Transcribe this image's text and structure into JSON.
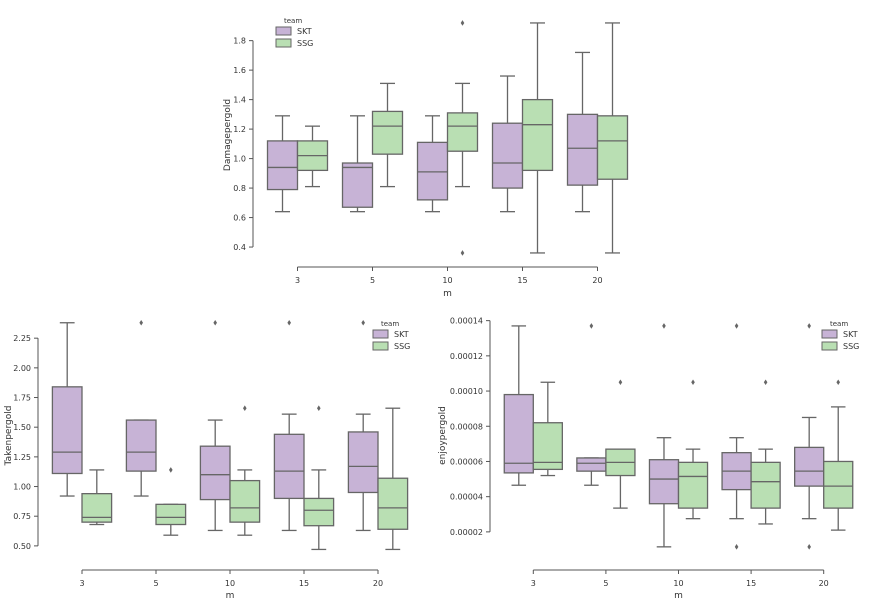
{
  "colors": {
    "SKT": "#c7b3d6",
    "SSG": "#b9dfb3",
    "edge": "#666666",
    "axis": "#555555"
  },
  "chart_data": [
    {
      "type": "box",
      "xlabel": "m",
      "ylabel": "Damagepergold",
      "categories": [
        "3",
        "5",
        "10",
        "15",
        "20"
      ],
      "yticks": [
        "0.4",
        "0.6",
        "0.8",
        "1.0",
        "1.2",
        "1.4",
        "1.6",
        "1.8"
      ],
      "ylim": [
        0.38,
        1.94
      ],
      "legend": {
        "title": "team",
        "entries": [
          "SKT",
          "SSG"
        ],
        "position": "top-left"
      },
      "series": [
        {
          "name": "SKT",
          "boxes": [
            {
              "whislo": 0.64,
              "q1": 0.79,
              "med": 0.94,
              "q3": 1.12,
              "whishi": 1.29,
              "fliers": []
            },
            {
              "whislo": 0.64,
              "q1": 0.67,
              "med": 0.94,
              "q3": 0.97,
              "whishi": 1.29,
              "fliers": []
            },
            {
              "whislo": 0.64,
              "q1": 0.72,
              "med": 0.91,
              "q3": 1.11,
              "whishi": 1.29,
              "fliers": []
            },
            {
              "whislo": 0.64,
              "q1": 0.8,
              "med": 0.97,
              "q3": 1.24,
              "whishi": 1.56,
              "fliers": []
            },
            {
              "whislo": 0.64,
              "q1": 0.82,
              "med": 1.07,
              "q3": 1.3,
              "whishi": 1.72,
              "fliers": []
            }
          ]
        },
        {
          "name": "SSG",
          "boxes": [
            {
              "whislo": 0.81,
              "q1": 0.92,
              "med": 1.02,
              "q3": 1.12,
              "whishi": 1.22,
              "fliers": []
            },
            {
              "whislo": 0.81,
              "q1": 1.03,
              "med": 1.22,
              "q3": 1.32,
              "whishi": 1.51,
              "fliers": []
            },
            {
              "whislo": 0.81,
              "q1": 1.05,
              "med": 1.22,
              "q3": 1.31,
              "whishi": 1.51,
              "fliers": [
                0.36,
                1.92
              ]
            },
            {
              "whislo": 0.36,
              "q1": 0.92,
              "med": 1.23,
              "q3": 1.4,
              "whishi": 1.92,
              "fliers": []
            },
            {
              "whislo": 0.36,
              "q1": 0.86,
              "med": 1.12,
              "q3": 1.29,
              "whishi": 1.92,
              "fliers": []
            }
          ]
        }
      ]
    },
    {
      "type": "box",
      "xlabel": "m",
      "ylabel": "Takenpergold",
      "categories": [
        "3",
        "5",
        "10",
        "15",
        "20"
      ],
      "yticks": [
        "0.50",
        "0.75",
        "1.00",
        "1.25",
        "1.50",
        "1.75",
        "2.00",
        "2.25"
      ],
      "ylim": [
        0.44,
        2.42
      ],
      "legend": {
        "title": "team",
        "entries": [
          "SKT",
          "SSG"
        ],
        "position": "top-right"
      },
      "series": [
        {
          "name": "SKT",
          "boxes": [
            {
              "whislo": 0.92,
              "q1": 1.11,
              "med": 1.29,
              "q3": 1.84,
              "whishi": 2.38,
              "fliers": []
            },
            {
              "whislo": 0.92,
              "q1": 1.13,
              "med": 1.29,
              "q3": 1.56,
              "whishi": 1.56,
              "fliers": [
                2.38
              ]
            },
            {
              "whislo": 0.63,
              "q1": 0.89,
              "med": 1.1,
              "q3": 1.34,
              "whishi": 1.56,
              "fliers": [
                2.38
              ]
            },
            {
              "whislo": 0.63,
              "q1": 0.9,
              "med": 1.13,
              "q3": 1.44,
              "whishi": 1.61,
              "fliers": [
                2.38
              ]
            },
            {
              "whislo": 0.63,
              "q1": 0.95,
              "med": 1.17,
              "q3": 1.46,
              "whishi": 1.61,
              "fliers": [
                2.38
              ]
            }
          ]
        },
        {
          "name": "SSG",
          "boxes": [
            {
              "whislo": 0.68,
              "q1": 0.7,
              "med": 0.74,
              "q3": 0.94,
              "whishi": 1.14,
              "fliers": []
            },
            {
              "whislo": 0.59,
              "q1": 0.68,
              "med": 0.74,
              "q3": 0.85,
              "whishi": 0.85,
              "fliers": [
                1.14
              ]
            },
            {
              "whislo": 0.59,
              "q1": 0.7,
              "med": 0.82,
              "q3": 1.05,
              "whishi": 1.14,
              "fliers": [
                1.66
              ]
            },
            {
              "whislo": 0.47,
              "q1": 0.67,
              "med": 0.8,
              "q3": 0.9,
              "whishi": 1.14,
              "fliers": [
                1.66
              ]
            },
            {
              "whislo": 0.47,
              "q1": 0.64,
              "med": 0.82,
              "q3": 1.07,
              "whishi": 1.66,
              "fliers": []
            }
          ]
        }
      ]
    },
    {
      "type": "box",
      "xlabel": "m",
      "ylabel": "enjoypergold",
      "categories": [
        "3",
        "5",
        "10",
        "15",
        "20"
      ],
      "yticks": [
        "0.00002",
        "0.00004",
        "0.00006",
        "0.00008",
        "0.00010",
        "0.00012",
        "0.00014"
      ],
      "ylim": [
        8e-06,
        0.0001415
      ],
      "legend": {
        "title": "team",
        "entries": [
          "SKT",
          "SSG"
        ],
        "position": "top-right"
      },
      "series": [
        {
          "name": "SKT",
          "boxes": [
            {
              "whislo": 4.65e-05,
              "q1": 5.35e-05,
              "med": 5.9e-05,
              "q3": 9.8e-05,
              "whishi": 0.000137,
              "fliers": []
            },
            {
              "whislo": 4.65e-05,
              "q1": 5.45e-05,
              "med": 5.9e-05,
              "q3": 6.2e-05,
              "whishi": 6.2e-05,
              "fliers": [
                0.000137
              ]
            },
            {
              "whislo": 1.15e-05,
              "q1": 3.6e-05,
              "med": 5e-05,
              "q3": 6.1e-05,
              "whishi": 7.35e-05,
              "fliers": [
                0.000137
              ]
            },
            {
              "whislo": 2.75e-05,
              "q1": 4.4e-05,
              "med": 5.45e-05,
              "q3": 6.5e-05,
              "whishi": 7.35e-05,
              "fliers": [
                0.000137,
                1.15e-05
              ]
            },
            {
              "whislo": 2.75e-05,
              "q1": 4.6e-05,
              "med": 5.45e-05,
              "q3": 6.8e-05,
              "whishi": 8.5e-05,
              "fliers": [
                0.000137,
                1.15e-05
              ]
            }
          ]
        },
        {
          "name": "SSG",
          "boxes": [
            {
              "whislo": 5.2e-05,
              "q1": 5.55e-05,
              "med": 5.95e-05,
              "q3": 8.2e-05,
              "whishi": 0.000105,
              "fliers": []
            },
            {
              "whislo": 3.35e-05,
              "q1": 5.2e-05,
              "med": 5.95e-05,
              "q3": 6.7e-05,
              "whishi": 6.7e-05,
              "fliers": [
                0.000105
              ]
            },
            {
              "whislo": 2.75e-05,
              "q1": 3.35e-05,
              "med": 5.15e-05,
              "q3": 5.95e-05,
              "whishi": 6.7e-05,
              "fliers": [
                0.000105
              ]
            },
            {
              "whislo": 2.45e-05,
              "q1": 3.35e-05,
              "med": 4.85e-05,
              "q3": 5.95e-05,
              "whishi": 6.7e-05,
              "fliers": [
                0.000105
              ]
            },
            {
              "whislo": 2.1e-05,
              "q1": 3.35e-05,
              "med": 4.6e-05,
              "q3": 6e-05,
              "whishi": 9.1e-05,
              "fliers": [
                0.000105
              ]
            }
          ]
        }
      ]
    }
  ]
}
